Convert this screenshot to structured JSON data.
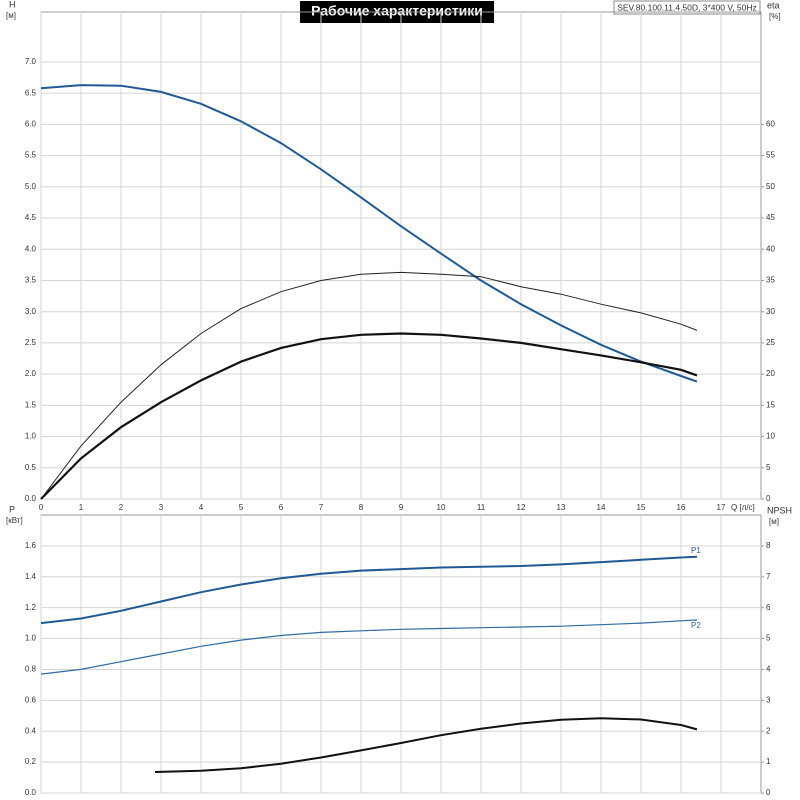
{
  "chart_data": [
    {
      "type": "line",
      "title": "Рабочие характеристики",
      "subtitle": "SEV.80.100.11.4.50D, 3*400 V, 50Hz",
      "ylabel": "H",
      "yunit": "[м]",
      "y2label": "eta",
      "y2unit": "[%]",
      "xlabel": "Q [л/с]",
      "xlim": [
        0,
        18
      ],
      "xticks": [
        0,
        1,
        2,
        3,
        4,
        5,
        6,
        7,
        8,
        9,
        10,
        11,
        12,
        13,
        14,
        15,
        16,
        17
      ],
      "ylim": [
        0,
        7.8
      ],
      "yticks": [
        {
          "value": 0,
          "label": "0.0"
        },
        0.5,
        {
          "value": 1,
          "label": "1.0"
        },
        1.5,
        {
          "value": 2,
          "label": "2.0"
        },
        2.5,
        {
          "value": 3,
          "label": "3.0"
        },
        3.5,
        {
          "value": 4,
          "label": "4.0"
        },
        4.5,
        {
          "value": 5,
          "label": "5.0"
        },
        5.5,
        {
          "value": 6,
          "label": "6.0"
        },
        6.5,
        {
          "value": 7,
          "label": "7.0"
        }
      ],
      "y2lim": [
        0,
        78
      ],
      "y2ticks": [
        0,
        5,
        10,
        15,
        20,
        25,
        30,
        35,
        40,
        45,
        50,
        55,
        60
      ],
      "grid": true,
      "series": [
        {
          "color": "#1f5a94",
          "width": 2,
          "x": [
            0,
            1,
            2,
            3,
            4,
            5,
            6,
            7,
            8,
            9,
            10,
            11,
            12,
            13,
            14,
            15,
            16,
            16.4
          ],
          "values": [
            6.58,
            6.63,
            6.62,
            6.52,
            6.33,
            6.05,
            5.7,
            5.28,
            4.83,
            4.37,
            3.93,
            3.5,
            3.12,
            2.78,
            2.47,
            2.2,
            1.97,
            1.88
          ]
        },
        {
          "color": "#222222",
          "width": 1,
          "axis": "y2",
          "x": [
            0,
            1,
            2,
            3,
            4,
            5,
            6,
            7,
            8,
            9,
            10,
            11,
            12,
            13,
            14,
            15,
            16,
            16.4
          ],
          "values": [
            0,
            8.5,
            15.5,
            21.5,
            26.5,
            30.5,
            33.2,
            35,
            36,
            36.3,
            36,
            35.6,
            34,
            32.8,
            31.2,
            29.8,
            28,
            27
          ]
        },
        {
          "color": "#111111",
          "width": 2.2,
          "axis": "y2",
          "x": [
            0,
            1,
            2,
            3,
            4,
            5,
            6,
            7,
            8,
            9,
            10,
            11,
            12,
            13,
            14,
            15,
            16,
            16.4
          ],
          "values": [
            0,
            6.5,
            11.5,
            15.5,
            19,
            22,
            24.2,
            25.6,
            26.3,
            26.5,
            26.3,
            25.7,
            25,
            24,
            23,
            21.9,
            20.7,
            19.8
          ]
        }
      ]
    },
    {
      "type": "line",
      "ylabel": "P",
      "yunit": "[кВт]",
      "y2label": "NPSH",
      "y2unit": "[м]",
      "xlim": [
        0,
        18
      ],
      "ylim": [
        0,
        1.8
      ],
      "yticks": [
        {
          "value": 0,
          "label": "0.0"
        },
        0.2,
        0.4,
        0.6,
        0.8,
        {
          "value": 1,
          "label": "1.0"
        },
        1.2,
        1.4,
        1.6
      ],
      "y2lim": [
        0,
        9
      ],
      "y2ticks": [
        0,
        1,
        2,
        3,
        4,
        5,
        6,
        7,
        8
      ],
      "grid": true,
      "series": [
        {
          "name": "P1",
          "color": "#1f5a94",
          "width": 2,
          "x": [
            0,
            1,
            2,
            3,
            4,
            5,
            6,
            7,
            8,
            9,
            10,
            11,
            12,
            13,
            14,
            15,
            16,
            16.4
          ],
          "values": [
            1.1,
            1.13,
            1.18,
            1.24,
            1.3,
            1.35,
            1.39,
            1.42,
            1.44,
            1.45,
            1.46,
            1.465,
            1.47,
            1.48,
            1.495,
            1.51,
            1.525,
            1.53
          ]
        },
        {
          "name": "P2",
          "color": "#2e6aa3",
          "width": 1.2,
          "x": [
            0,
            1,
            2,
            3,
            4,
            5,
            6,
            7,
            8,
            9,
            10,
            11,
            12,
            13,
            14,
            15,
            16,
            16.4
          ],
          "values": [
            0.77,
            0.8,
            0.85,
            0.9,
            0.95,
            0.99,
            1.02,
            1.04,
            1.05,
            1.06,
            1.065,
            1.07,
            1.075,
            1.08,
            1.09,
            1.1,
            1.115,
            1.12
          ]
        },
        {
          "color": "#111111",
          "width": 2,
          "axis": "y2",
          "x": [
            2.85,
            4,
            5,
            6,
            7,
            8,
            9,
            10,
            11,
            12,
            13,
            14,
            15,
            16,
            16.4
          ],
          "values": [
            0.68,
            0.72,
            0.8,
            0.95,
            1.15,
            1.38,
            1.62,
            1.87,
            2.08,
            2.25,
            2.37,
            2.42,
            2.38,
            2.2,
            2.06
          ]
        }
      ]
    }
  ]
}
